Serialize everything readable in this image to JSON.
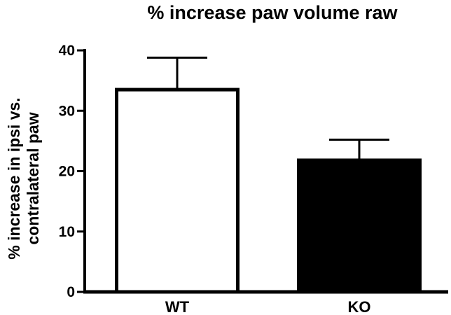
{
  "chart_data": {
    "type": "bar",
    "title": "% increase paw volume raw",
    "xlabel": "",
    "ylabel": [
      "% increase in ipsi vs.",
      "contralateral paw"
    ],
    "categories": [
      "WT",
      "KO"
    ],
    "values": [
      33.5,
      21.8
    ],
    "error_upper": [
      38.8,
      25.2
    ],
    "bar_fill": [
      "#ffffff",
      "#000000"
    ],
    "bar_edge": "#000000",
    "ylim": [
      0,
      40
    ],
    "yticks": [
      "0",
      "10",
      "20",
      "30",
      "40"
    ],
    "grid": false,
    "legend": "none"
  }
}
